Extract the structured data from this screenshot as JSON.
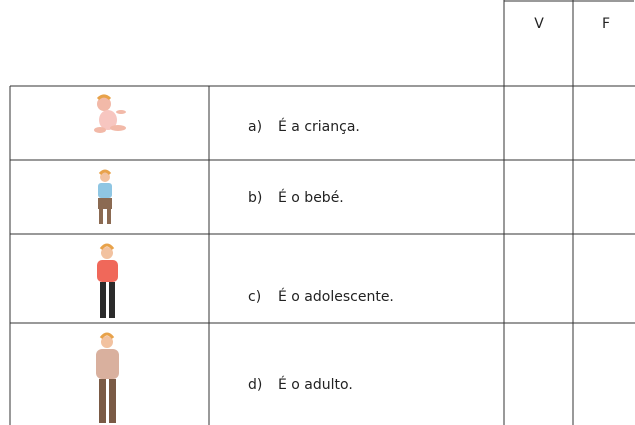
{
  "table": {
    "header": [
      "V",
      "F"
    ],
    "rows": [
      {
        "letter": "a)",
        "text": "É a criança."
      },
      {
        "letter": "b)",
        "text": "É o bebé."
      },
      {
        "letter": "c)",
        "text": "É o adolescente."
      },
      {
        "letter": "d)",
        "text": "É o adulto."
      }
    ]
  }
}
